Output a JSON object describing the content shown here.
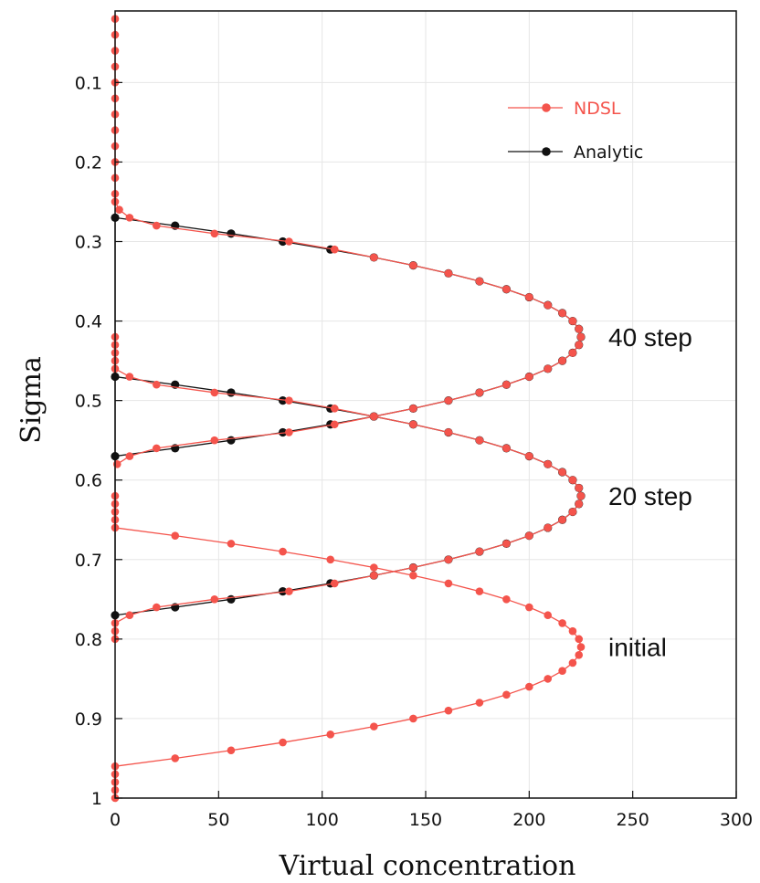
{
  "chart_data": {
    "type": "line",
    "title": "",
    "xlabel": "Virtual concentration",
    "ylabel": "Sigma",
    "xlim": [
      0,
      300
    ],
    "ylim": [
      0.01,
      1.0
    ],
    "y_inverted": true,
    "x_ticks": [
      0,
      50,
      100,
      150,
      200,
      250,
      300
    ],
    "y_ticks": [
      0.1,
      0.2,
      0.3,
      0.4,
      0.5,
      0.6,
      0.7,
      0.8,
      0.9,
      1
    ],
    "grid": true,
    "legend_position": "top-right",
    "colors": {
      "ndsl": "#f4544c",
      "analytic": "#111111"
    },
    "series": [
      {
        "name": "NDSL",
        "color": "#f4544c",
        "curves": [
          {
            "label": "initial",
            "points": [
              [
                0,
                0.62
              ],
              [
                0,
                0.63
              ],
              [
                0,
                0.64
              ],
              [
                0,
                0.65
              ],
              [
                0,
                0.66
              ],
              [
                29,
                0.67
              ],
              [
                56,
                0.68
              ],
              [
                81,
                0.69
              ],
              [
                104,
                0.7
              ],
              [
                125,
                0.71
              ],
              [
                144,
                0.72
              ],
              [
                161,
                0.73
              ],
              [
                176,
                0.74
              ],
              [
                189,
                0.75
              ],
              [
                200,
                0.76
              ],
              [
                209,
                0.77
              ],
              [
                216,
                0.78
              ],
              [
                221,
                0.79
              ],
              [
                224,
                0.8
              ],
              [
                225,
                0.81
              ],
              [
                224,
                0.82
              ],
              [
                221,
                0.83
              ],
              [
                216,
                0.84
              ],
              [
                209,
                0.85
              ],
              [
                200,
                0.86
              ],
              [
                189,
                0.87
              ],
              [
                176,
                0.88
              ],
              [
                161,
                0.89
              ],
              [
                144,
                0.9
              ],
              [
                125,
                0.91
              ],
              [
                104,
                0.92
              ],
              [
                81,
                0.93
              ],
              [
                56,
                0.94
              ],
              [
                29,
                0.95
              ],
              [
                0,
                0.96
              ],
              [
                0,
                0.97
              ],
              [
                0,
                0.98
              ],
              [
                0,
                0.99
              ],
              [
                0,
                1.0
              ]
            ]
          },
          {
            "label": "20 step",
            "points": [
              [
                0,
                0.42
              ],
              [
                0,
                0.43
              ],
              [
                0,
                0.44
              ],
              [
                0,
                0.45
              ],
              [
                0,
                0.46
              ],
              [
                7,
                0.47
              ],
              [
                20,
                0.48
              ],
              [
                48,
                0.49
              ],
              [
                84,
                0.5
              ],
              [
                106,
                0.51
              ],
              [
                125,
                0.52
              ],
              [
                144,
                0.53
              ],
              [
                161,
                0.54
              ],
              [
                176,
                0.55
              ],
              [
                189,
                0.56
              ],
              [
                200,
                0.57
              ],
              [
                209,
                0.58
              ],
              [
                216,
                0.59
              ],
              [
                221,
                0.6
              ],
              [
                224,
                0.61
              ],
              [
                225,
                0.62
              ],
              [
                224,
                0.63
              ],
              [
                221,
                0.64
              ],
              [
                216,
                0.65
              ],
              [
                209,
                0.66
              ],
              [
                200,
                0.67
              ],
              [
                189,
                0.68
              ],
              [
                176,
                0.69
              ],
              [
                161,
                0.7
              ],
              [
                144,
                0.71
              ],
              [
                125,
                0.72
              ],
              [
                106,
                0.73
              ],
              [
                84,
                0.74
              ],
              [
                48,
                0.75
              ],
              [
                20,
                0.76
              ],
              [
                7,
                0.77
              ],
              [
                0,
                0.78
              ],
              [
                0,
                0.79
              ],
              [
                0,
                0.8
              ]
            ]
          },
          {
            "label": "40 step",
            "points": [
              [
                0,
                0.02
              ],
              [
                0,
                0.04
              ],
              [
                0,
                0.06
              ],
              [
                0,
                0.08
              ],
              [
                0,
                0.1
              ],
              [
                0,
                0.12
              ],
              [
                0,
                0.14
              ],
              [
                0,
                0.16
              ],
              [
                0,
                0.18
              ],
              [
                0,
                0.2
              ],
              [
                0,
                0.22
              ],
              [
                0,
                0.24
              ],
              [
                0,
                0.25
              ],
              [
                2,
                0.26
              ],
              [
                7,
                0.27
              ],
              [
                20,
                0.28
              ],
              [
                48,
                0.29
              ],
              [
                84,
                0.3
              ],
              [
                106,
                0.31
              ],
              [
                125,
                0.32
              ],
              [
                144,
                0.33
              ],
              [
                161,
                0.34
              ],
              [
                176,
                0.35
              ],
              [
                189,
                0.36
              ],
              [
                200,
                0.37
              ],
              [
                209,
                0.38
              ],
              [
                216,
                0.39
              ],
              [
                221,
                0.4
              ],
              [
                224,
                0.41
              ],
              [
                225,
                0.42
              ],
              [
                224,
                0.43
              ],
              [
                221,
                0.44
              ],
              [
                216,
                0.45
              ],
              [
                209,
                0.46
              ],
              [
                200,
                0.47
              ],
              [
                189,
                0.48
              ],
              [
                176,
                0.49
              ],
              [
                161,
                0.5
              ],
              [
                144,
                0.51
              ],
              [
                125,
                0.52
              ],
              [
                106,
                0.53
              ],
              [
                84,
                0.54
              ],
              [
                48,
                0.55
              ],
              [
                20,
                0.56
              ],
              [
                7,
                0.57
              ],
              [
                1,
                0.58
              ]
            ]
          }
        ]
      },
      {
        "name": "Analytic",
        "color": "#111111",
        "curves": [
          {
            "label": "20 step",
            "points": [
              [
                0,
                0.47
              ],
              [
                29,
                0.48
              ],
              [
                56,
                0.49
              ],
              [
                81,
                0.5
              ],
              [
                104,
                0.51
              ],
              [
                125,
                0.52
              ],
              [
                144,
                0.53
              ],
              [
                161,
                0.54
              ],
              [
                176,
                0.55
              ],
              [
                189,
                0.56
              ],
              [
                200,
                0.57
              ],
              [
                209,
                0.58
              ],
              [
                216,
                0.59
              ],
              [
                221,
                0.6
              ],
              [
                224,
                0.61
              ],
              [
                225,
                0.62
              ],
              [
                224,
                0.63
              ],
              [
                221,
                0.64
              ],
              [
                216,
                0.65
              ],
              [
                209,
                0.66
              ],
              [
                200,
                0.67
              ],
              [
                189,
                0.68
              ],
              [
                176,
                0.69
              ],
              [
                161,
                0.7
              ],
              [
                144,
                0.71
              ],
              [
                125,
                0.72
              ],
              [
                104,
                0.73
              ],
              [
                81,
                0.74
              ],
              [
                56,
                0.75
              ],
              [
                29,
                0.76
              ],
              [
                0,
                0.77
              ]
            ]
          },
          {
            "label": "40 step",
            "points": [
              [
                0,
                0.27
              ],
              [
                29,
                0.28
              ],
              [
                56,
                0.29
              ],
              [
                81,
                0.3
              ],
              [
                104,
                0.31
              ],
              [
                125,
                0.32
              ],
              [
                144,
                0.33
              ],
              [
                161,
                0.34
              ],
              [
                176,
                0.35
              ],
              [
                189,
                0.36
              ],
              [
                200,
                0.37
              ],
              [
                209,
                0.38
              ],
              [
                216,
                0.39
              ],
              [
                221,
                0.4
              ],
              [
                224,
                0.41
              ],
              [
                225,
                0.42
              ],
              [
                224,
                0.43
              ],
              [
                221,
                0.44
              ],
              [
                216,
                0.45
              ],
              [
                209,
                0.46
              ],
              [
                200,
                0.47
              ],
              [
                189,
                0.48
              ],
              [
                176,
                0.49
              ],
              [
                161,
                0.5
              ],
              [
                144,
                0.51
              ],
              [
                125,
                0.52
              ],
              [
                104,
                0.53
              ],
              [
                81,
                0.54
              ],
              [
                56,
                0.55
              ],
              [
                29,
                0.56
              ],
              [
                0,
                0.57
              ]
            ]
          },
          {
            "label": "",
            "points": [
              [
                0,
                0.27
              ],
              [
                0,
                0.47
              ],
              [
                0,
                0.57
              ],
              [
                0,
                0.77
              ]
            ]
          }
        ]
      }
    ],
    "annotations": [
      {
        "text": "40 step",
        "at": [
          240,
          0.42
        ]
      },
      {
        "text": "20 step",
        "at": [
          240,
          0.62
        ]
      },
      {
        "text": "initial",
        "at": [
          240,
          0.81
        ]
      }
    ]
  }
}
